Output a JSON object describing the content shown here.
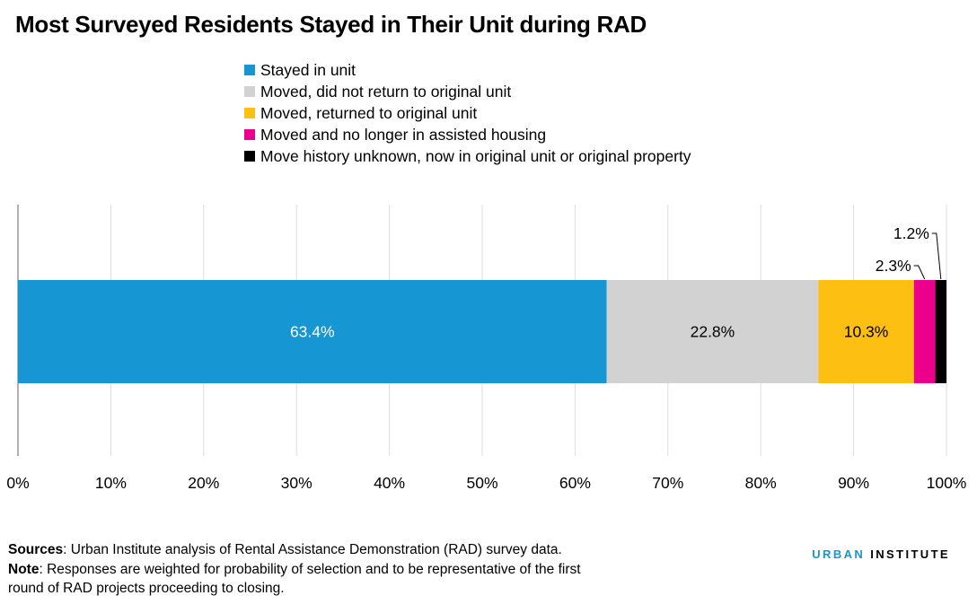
{
  "chart_data": {
    "type": "bar",
    "orientation": "horizontal-stacked",
    "title": "Most Surveyed Residents Stayed in Their Unit during RAD",
    "xlim": [
      0,
      100
    ],
    "x_ticks": [
      "0%",
      "10%",
      "20%",
      "30%",
      "40%",
      "50%",
      "60%",
      "70%",
      "80%",
      "90%",
      "100%"
    ],
    "grid": "vertical",
    "legend_position": "top",
    "series": [
      {
        "name": "Stayed in unit",
        "value": 63.4,
        "label": "63.4%",
        "color": "#1696d2",
        "label_color": "#ffffff"
      },
      {
        "name": "Moved, did not return to original unit",
        "value": 22.8,
        "label": "22.8%",
        "color": "#d2d2d2",
        "label_color": "#000000"
      },
      {
        "name": "Moved, returned to original unit",
        "value": 10.3,
        "label": "10.3%",
        "color": "#fdbf11",
        "label_color": "#000000"
      },
      {
        "name": "Moved and no longer in assisted housing",
        "value": 2.3,
        "label": "2.3%",
        "color": "#ec008b",
        "label_color": "#000000"
      },
      {
        "name": "Move history unknown, now in original unit or original property",
        "value": 1.2,
        "label": "1.2%",
        "color": "#000000",
        "label_color": "#000000"
      }
    ]
  },
  "notes": {
    "sources_label": "Sources",
    "sources_text": ": Urban Institute analysis of Rental Assistance Demonstration (RAD) survey data.",
    "note_label": "Note",
    "note_line1": ": Responses are weighted for probability of selection and to be representative of the first",
    "note_line2": "round of RAD projects proceeding to closing."
  },
  "logo": {
    "word1": "URBAN",
    "word2": "INSTITUTE",
    "color1": "#1696d2",
    "color2": "#000000"
  }
}
